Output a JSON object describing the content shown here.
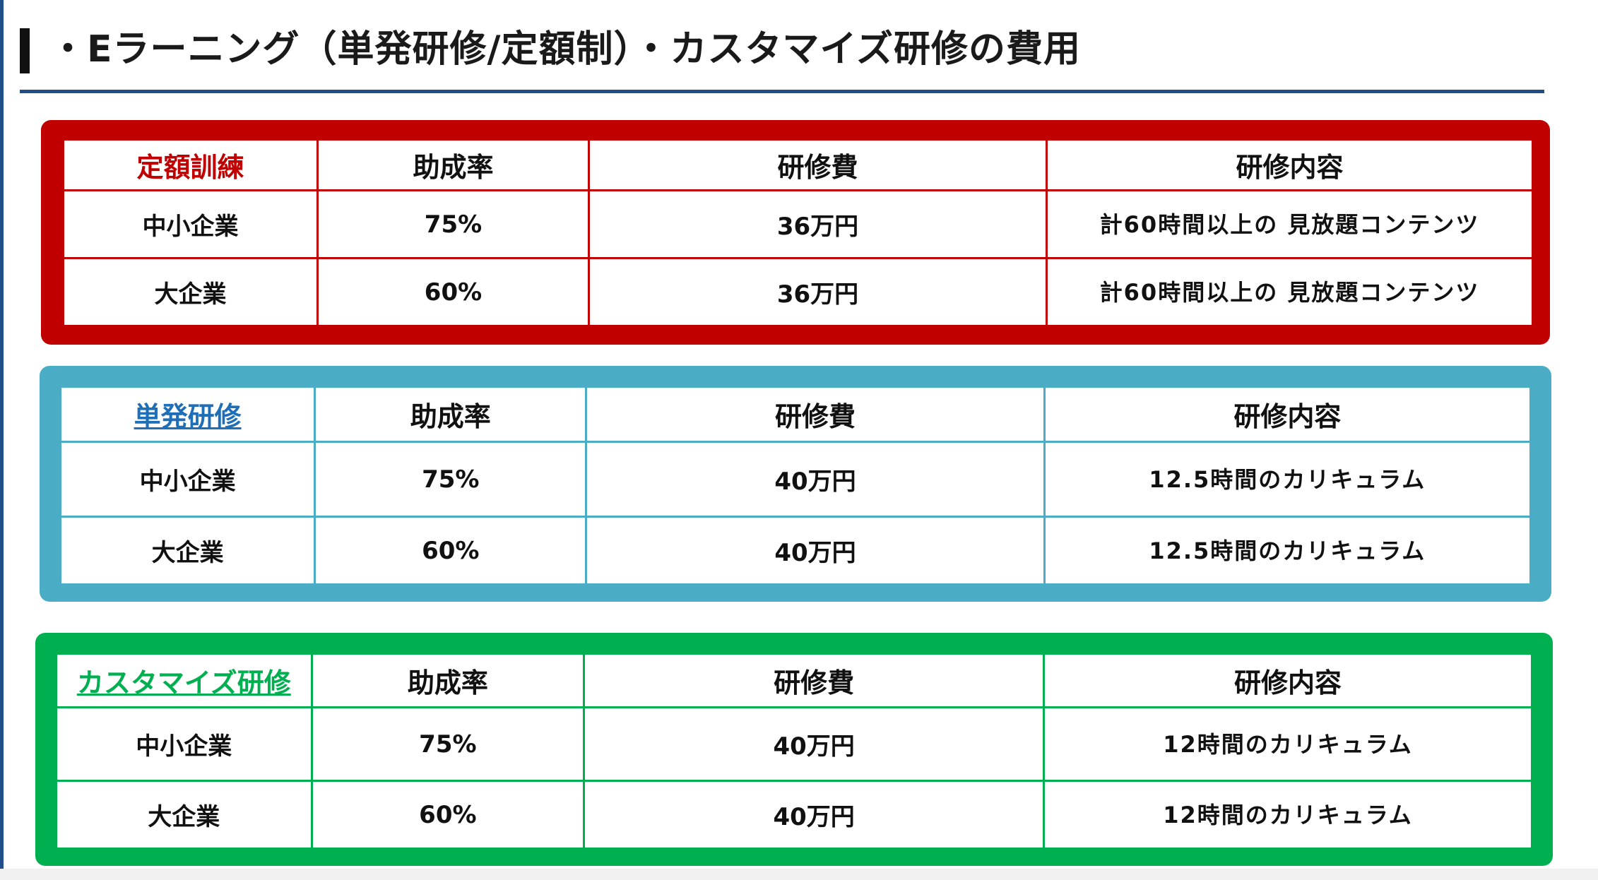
{
  "page": {
    "title": "・Eラーニング（単発研修/定額制）・カスタマイズ研修の費用"
  },
  "colors": {
    "accent_navy": "#1f4e8a",
    "red": "#c00000",
    "blue": "#4bacc6",
    "link_blue": "#1f6fb8",
    "green": "#00b050"
  },
  "plans": [
    {
      "name": "定額訓練",
      "headers": [
        "助成率",
        "研修費",
        "研修内容"
      ],
      "rows": [
        {
          "company": "中小企業",
          "rate": "75%",
          "fee": "36万円",
          "content": "計60時間以上の 見放題コンテンツ"
        },
        {
          "company": "大企業",
          "rate": "60%",
          "fee": "36万円",
          "content": "計60時間以上の 見放題コンテンツ"
        }
      ]
    },
    {
      "name": "単発研修",
      "headers": [
        "助成率",
        "研修費",
        "研修内容"
      ],
      "rows": [
        {
          "company": "中小企業",
          "rate": "75%",
          "fee": "40万円",
          "content": "12.5時間のカリキュラム"
        },
        {
          "company": "大企業",
          "rate": "60%",
          "fee": "40万円",
          "content": "12.5時間のカリキュラム"
        }
      ]
    },
    {
      "name": "カスタマイズ研修",
      "headers": [
        "助成率",
        "研修費",
        "研修内容"
      ],
      "rows": [
        {
          "company": "中小企業",
          "rate": "75%",
          "fee": "40万円",
          "content": "12時間のカリキュラム"
        },
        {
          "company": "大企業",
          "rate": "60%",
          "fee": "40万円",
          "content": "12時間のカリキュラム"
        }
      ]
    }
  ]
}
